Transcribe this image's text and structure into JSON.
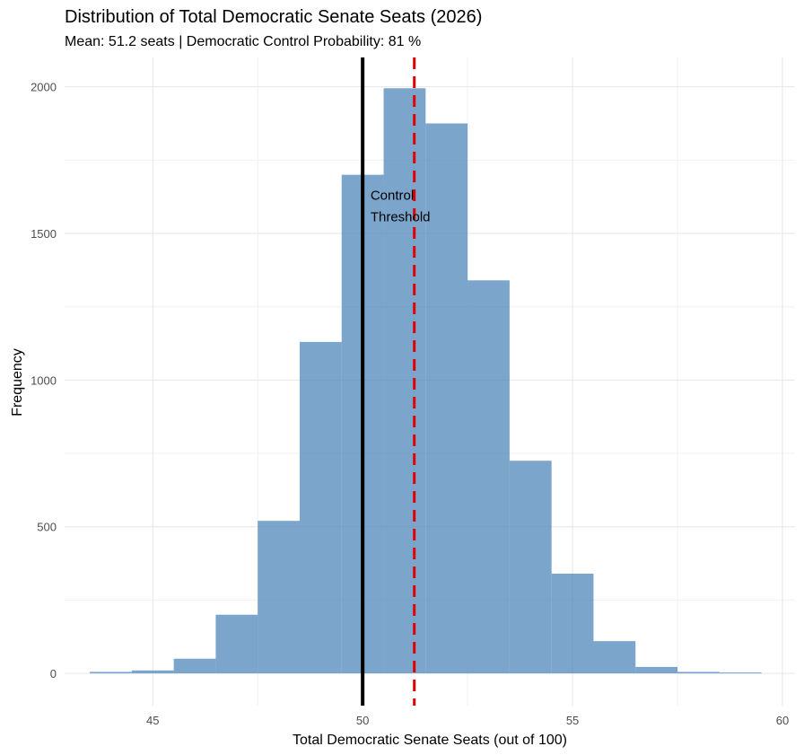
{
  "chart_data": {
    "type": "bar",
    "title": "Distribution of Total Democratic Senate Seats (2026)",
    "subtitle": "Mean: 51.2 seats | Democratic Control Probability: 81 %",
    "xlabel": "Total Democratic Senate Seats (out of 100)",
    "ylabel": "Frequency",
    "bin_width": 1,
    "bins": [
      {
        "center": 44,
        "value": 5
      },
      {
        "center": 45,
        "value": 10
      },
      {
        "center": 46,
        "value": 50
      },
      {
        "center": 47,
        "value": 200
      },
      {
        "center": 48,
        "value": 520
      },
      {
        "center": 49,
        "value": 1130
      },
      {
        "center": 50,
        "value": 1700
      },
      {
        "center": 51,
        "value": 1995
      },
      {
        "center": 52,
        "value": 1875
      },
      {
        "center": 53,
        "value": 1340
      },
      {
        "center": 54,
        "value": 725
      },
      {
        "center": 55,
        "value": 340
      },
      {
        "center": 56,
        "value": 110
      },
      {
        "center": 57,
        "value": 22
      },
      {
        "center": 58,
        "value": 5
      },
      {
        "center": 59,
        "value": 3
      }
    ],
    "xlim": [
      42.9,
      60.3
    ],
    "ylim": [
      -110,
      2100
    ],
    "x_ticks": [
      {
        "value": 45,
        "label": "45"
      },
      {
        "value": 50,
        "label": "50"
      },
      {
        "value": 55,
        "label": "55"
      },
      {
        "value": 60,
        "label": "60"
      }
    ],
    "y_ticks": [
      {
        "value": 0,
        "label": "0"
      },
      {
        "value": 500,
        "label": "500"
      },
      {
        "value": 1000,
        "label": "1000"
      },
      {
        "value": 1500,
        "label": "1500"
      },
      {
        "value": 2000,
        "label": "2000"
      }
    ],
    "grid": true,
    "bar_color": "#4a82b8",
    "reference_lines": [
      {
        "x": 50,
        "color": "#000000",
        "style": "solid"
      },
      {
        "x": 51.23,
        "color": "#e00000",
        "style": "dashed"
      }
    ],
    "annotation": {
      "x": 50.1,
      "y": 1615,
      "lines": [
        "Control",
        "Threshold"
      ]
    }
  }
}
